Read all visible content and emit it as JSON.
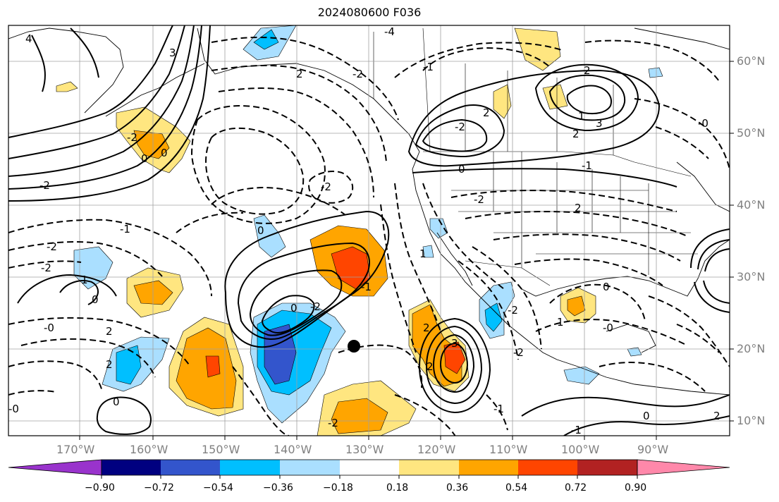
{
  "title": "2024080600 F036",
  "longitude_labels": [
    "170°W",
    "160°W",
    "150°W",
    "140°W",
    "130°W",
    "120°W",
    "110°W",
    "100°W",
    "90°W"
  ],
  "latitude_labels": [
    "60°N",
    "50°N",
    "40°N",
    "30°N",
    "20°N",
    "10°N"
  ],
  "colorbar": {
    "ticks": [
      "−0.90",
      "−0.72",
      "−0.54",
      "−0.36",
      "−0.18",
      "0.18",
      "0.36",
      "0.54",
      "0.72",
      "0.90"
    ],
    "colors": [
      "#9933cc",
      "#000080",
      "#3355cc",
      "#00bfff",
      "#aadfff",
      "#ffffff",
      "#ffe680",
      "#ffa500",
      "#ff4500",
      "#b22222",
      "#ff88aa"
    ]
  },
  "contour_labels": [
    "4",
    "3",
    "-4",
    "-2",
    "2",
    "-1",
    "2",
    "-2",
    "1",
    "2",
    "3",
    "2",
    "0",
    "-2",
    "-1",
    "-2",
    "2",
    "-2",
    "0",
    "-1",
    "-2",
    "1",
    "0",
    "-2",
    "-2",
    "2",
    "0",
    "-0",
    "1",
    "0",
    "-1",
    "-2",
    "0",
    "2",
    "0",
    "-2",
    "-0",
    "2",
    "2",
    "3",
    "-2",
    "-2",
    "-1",
    "0",
    "1",
    "-0",
    "0",
    "-1",
    "2",
    "-0"
  ]
}
